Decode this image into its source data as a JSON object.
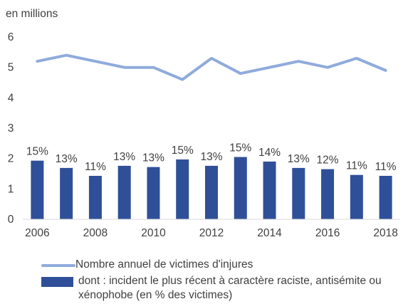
{
  "chart_data": {
    "type": "bar+line",
    "unit_label": "en millions",
    "x": [
      2006,
      2007,
      2008,
      2009,
      2010,
      2011,
      2012,
      2013,
      2014,
      2015,
      2016,
      2017,
      2018
    ],
    "x_tick_labels": [
      "2006",
      "2008",
      "2010",
      "2012",
      "2014",
      "2016",
      "2018"
    ],
    "ylim": [
      0,
      6
    ],
    "y_ticks": [
      "0",
      "1",
      "2",
      "3",
      "4",
      "5",
      "6"
    ],
    "grid": false,
    "legend_position": "bottom",
    "series": [
      {
        "name": "Nombre annuel de victimes d'injures",
        "kind": "line",
        "color": "#8fabdc",
        "values": [
          5.2,
          5.4,
          5.2,
          5.0,
          5.0,
          4.6,
          5.3,
          4.8,
          5.0,
          5.2,
          5.0,
          5.3,
          4.9
        ]
      },
      {
        "name": "dont : incident le plus récent à caractère raciste, antisémite ou xénophobe (en % des victimes)",
        "kind": "bar",
        "color": "#2f4f99",
        "values": [
          1.93,
          1.69,
          1.43,
          1.76,
          1.72,
          1.97,
          1.76,
          2.05,
          1.9,
          1.69,
          1.65,
          1.46,
          1.43
        ],
        "data_labels": [
          "15%",
          "13%",
          "11%",
          "13%",
          "13%",
          "15%",
          "13%",
          "15%",
          "14%",
          "13%",
          "12%",
          "11%",
          "11%"
        ]
      }
    ]
  },
  "legend": {
    "line_label": "Nombre annuel de victimes d'injures",
    "bar_label": "dont : incident le plus récent à caractère raciste, antisémite ou xénophobe (en % des victimes)"
  }
}
